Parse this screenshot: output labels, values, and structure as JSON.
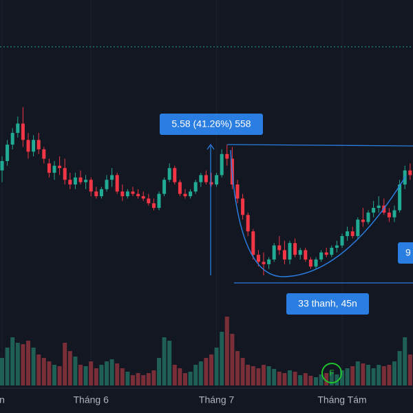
{
  "chart_data": {
    "type": "candlestick",
    "open": [
      18.0,
      18.4,
      19.1,
      19.6,
      20.0,
      19.3,
      18.8,
      19.3,
      18.9,
      18.3,
      17.9,
      18.2,
      18.1,
      17.6,
      17.4,
      17.7,
      17.5,
      17.6,
      17.1,
      16.9,
      17.2,
      17.6,
      17.8,
      17.1,
      16.9,
      17.1,
      17.0,
      16.9,
      16.8,
      16.6,
      16.4,
      17.0,
      17.6,
      18.1,
      17.5,
      17.0,
      16.9,
      17.1,
      17.5,
      17.8,
      17.5,
      17.4,
      17.8,
      18.7,
      18.5,
      17.4,
      16.8,
      16.1,
      15.4,
      14.4,
      14.1,
      14.0,
      14.2,
      14.8,
      14.6,
      14.2,
      14.9,
      14.4,
      14.6,
      14.2,
      13.9,
      14.2,
      14.5,
      14.4,
      14.7,
      14.8,
      15.2,
      15.4,
      15.2,
      15.9,
      15.8,
      16.2,
      16.4,
      16.5,
      16.2,
      16.0,
      16.3,
      17.4,
      18.0
    ],
    "high": [
      18.6,
      19.3,
      19.8,
      20.3,
      20.7,
      19.6,
      19.5,
      19.6,
      19.0,
      18.5,
      18.4,
      18.6,
      18.5,
      17.9,
      17.9,
      18.0,
      17.8,
      17.7,
      17.3,
      17.3,
      17.8,
      18.1,
      17.9,
      17.4,
      17.2,
      17.3,
      17.2,
      17.1,
      17.0,
      16.8,
      17.1,
      17.7,
      18.3,
      18.2,
      17.6,
      17.2,
      17.2,
      17.6,
      17.9,
      18.0,
      17.9,
      17.9,
      18.9,
      19.1,
      19.0,
      17.6,
      17.0,
      16.2,
      15.5,
      14.6,
      14.5,
      14.3,
      14.9,
      15.2,
      15.0,
      15.0,
      15.1,
      14.7,
      14.7,
      14.3,
      14.3,
      14.6,
      14.7,
      14.8,
      15.0,
      15.3,
      15.6,
      15.6,
      16.0,
      16.4,
      16.3,
      16.7,
      16.9,
      16.8,
      16.4,
      16.5,
      17.6,
      18.2,
      18.3
    ],
    "low": [
      17.5,
      18.2,
      18.9,
      19.4,
      19.0,
      18.5,
      18.6,
      18.7,
      18.3,
      17.7,
      17.6,
      17.8,
      17.4,
      17.2,
      17.2,
      17.4,
      17.2,
      16.9,
      16.8,
      16.8,
      17.1,
      17.3,
      17.0,
      16.7,
      16.8,
      16.9,
      16.8,
      16.7,
      16.5,
      16.3,
      16.3,
      16.9,
      17.5,
      17.4,
      16.9,
      16.8,
      16.8,
      17.0,
      17.3,
      17.4,
      17.3,
      17.3,
      17.7,
      18.2,
      17.2,
      16.6,
      15.9,
      15.2,
      14.2,
      13.9,
      13.52,
      13.8,
      14.1,
      14.4,
      14.0,
      14.0,
      14.3,
      14.2,
      14.1,
      13.8,
      13.8,
      14.1,
      14.3,
      14.3,
      14.5,
      14.7,
      15.0,
      15.1,
      15.1,
      15.6,
      15.7,
      16.0,
      16.2,
      16.1,
      15.8,
      15.8,
      16.2,
      17.2,
      17.6
    ],
    "close": [
      18.4,
      19.1,
      19.6,
      20.0,
      19.3,
      18.8,
      19.3,
      18.9,
      18.5,
      17.9,
      18.2,
      18.1,
      17.6,
      17.4,
      17.7,
      17.5,
      17.6,
      17.1,
      16.9,
      17.2,
      17.6,
      17.8,
      17.1,
      16.9,
      17.1,
      17.0,
      16.9,
      16.8,
      16.6,
      16.4,
      17.0,
      17.6,
      18.1,
      17.5,
      17.0,
      16.9,
      17.1,
      17.5,
      17.8,
      17.5,
      17.4,
      17.8,
      18.7,
      18.5,
      17.4,
      16.8,
      16.1,
      15.4,
      14.4,
      14.1,
      14.0,
      14.2,
      14.8,
      14.6,
      14.2,
      14.9,
      14.4,
      14.6,
      14.2,
      13.9,
      14.2,
      14.5,
      14.4,
      14.7,
      14.8,
      15.2,
      15.4,
      15.2,
      15.9,
      15.8,
      16.2,
      16.4,
      16.5,
      16.2,
      16.0,
      16.3,
      17.4,
      18.0,
      17.8
    ],
    "volume": [
      40,
      55,
      70,
      62,
      60,
      65,
      55,
      45,
      40,
      35,
      30,
      28,
      62,
      50,
      42,
      30,
      28,
      35,
      25,
      30,
      35,
      38,
      32,
      25,
      20,
      15,
      18,
      15,
      18,
      22,
      40,
      70,
      65,
      30,
      25,
      18,
      20,
      30,
      35,
      40,
      45,
      55,
      78,
      100,
      75,
      50,
      40,
      30,
      28,
      25,
      30,
      28,
      24,
      20,
      18,
      22,
      20,
      15,
      18,
      14,
      12,
      16,
      18,
      20,
      16,
      22,
      25,
      28,
      35,
      32,
      30,
      25,
      30,
      28,
      30,
      35,
      50,
      70,
      45
    ],
    "ylim": [
      12.35,
      25.27
    ],
    "volume_lim": [
      0,
      100
    ],
    "xticks": [
      {
        "value": 0,
        "label": "n"
      },
      {
        "value": 17,
        "label": "Tháng 6"
      },
      {
        "value": 41,
        "label": "Tháng 7"
      },
      {
        "value": 65,
        "label": "Tháng Tám"
      }
    ],
    "up_color": "#22ab94",
    "down_color": "#f23645",
    "up_volume_color": "#1f5f55",
    "down_volume_color": "#7a2e38",
    "annotations": {
      "measure": "5.58 (41.26%) 558",
      "range": "33 thanh, 45n",
      "partial": "9",
      "flag": "F"
    }
  }
}
